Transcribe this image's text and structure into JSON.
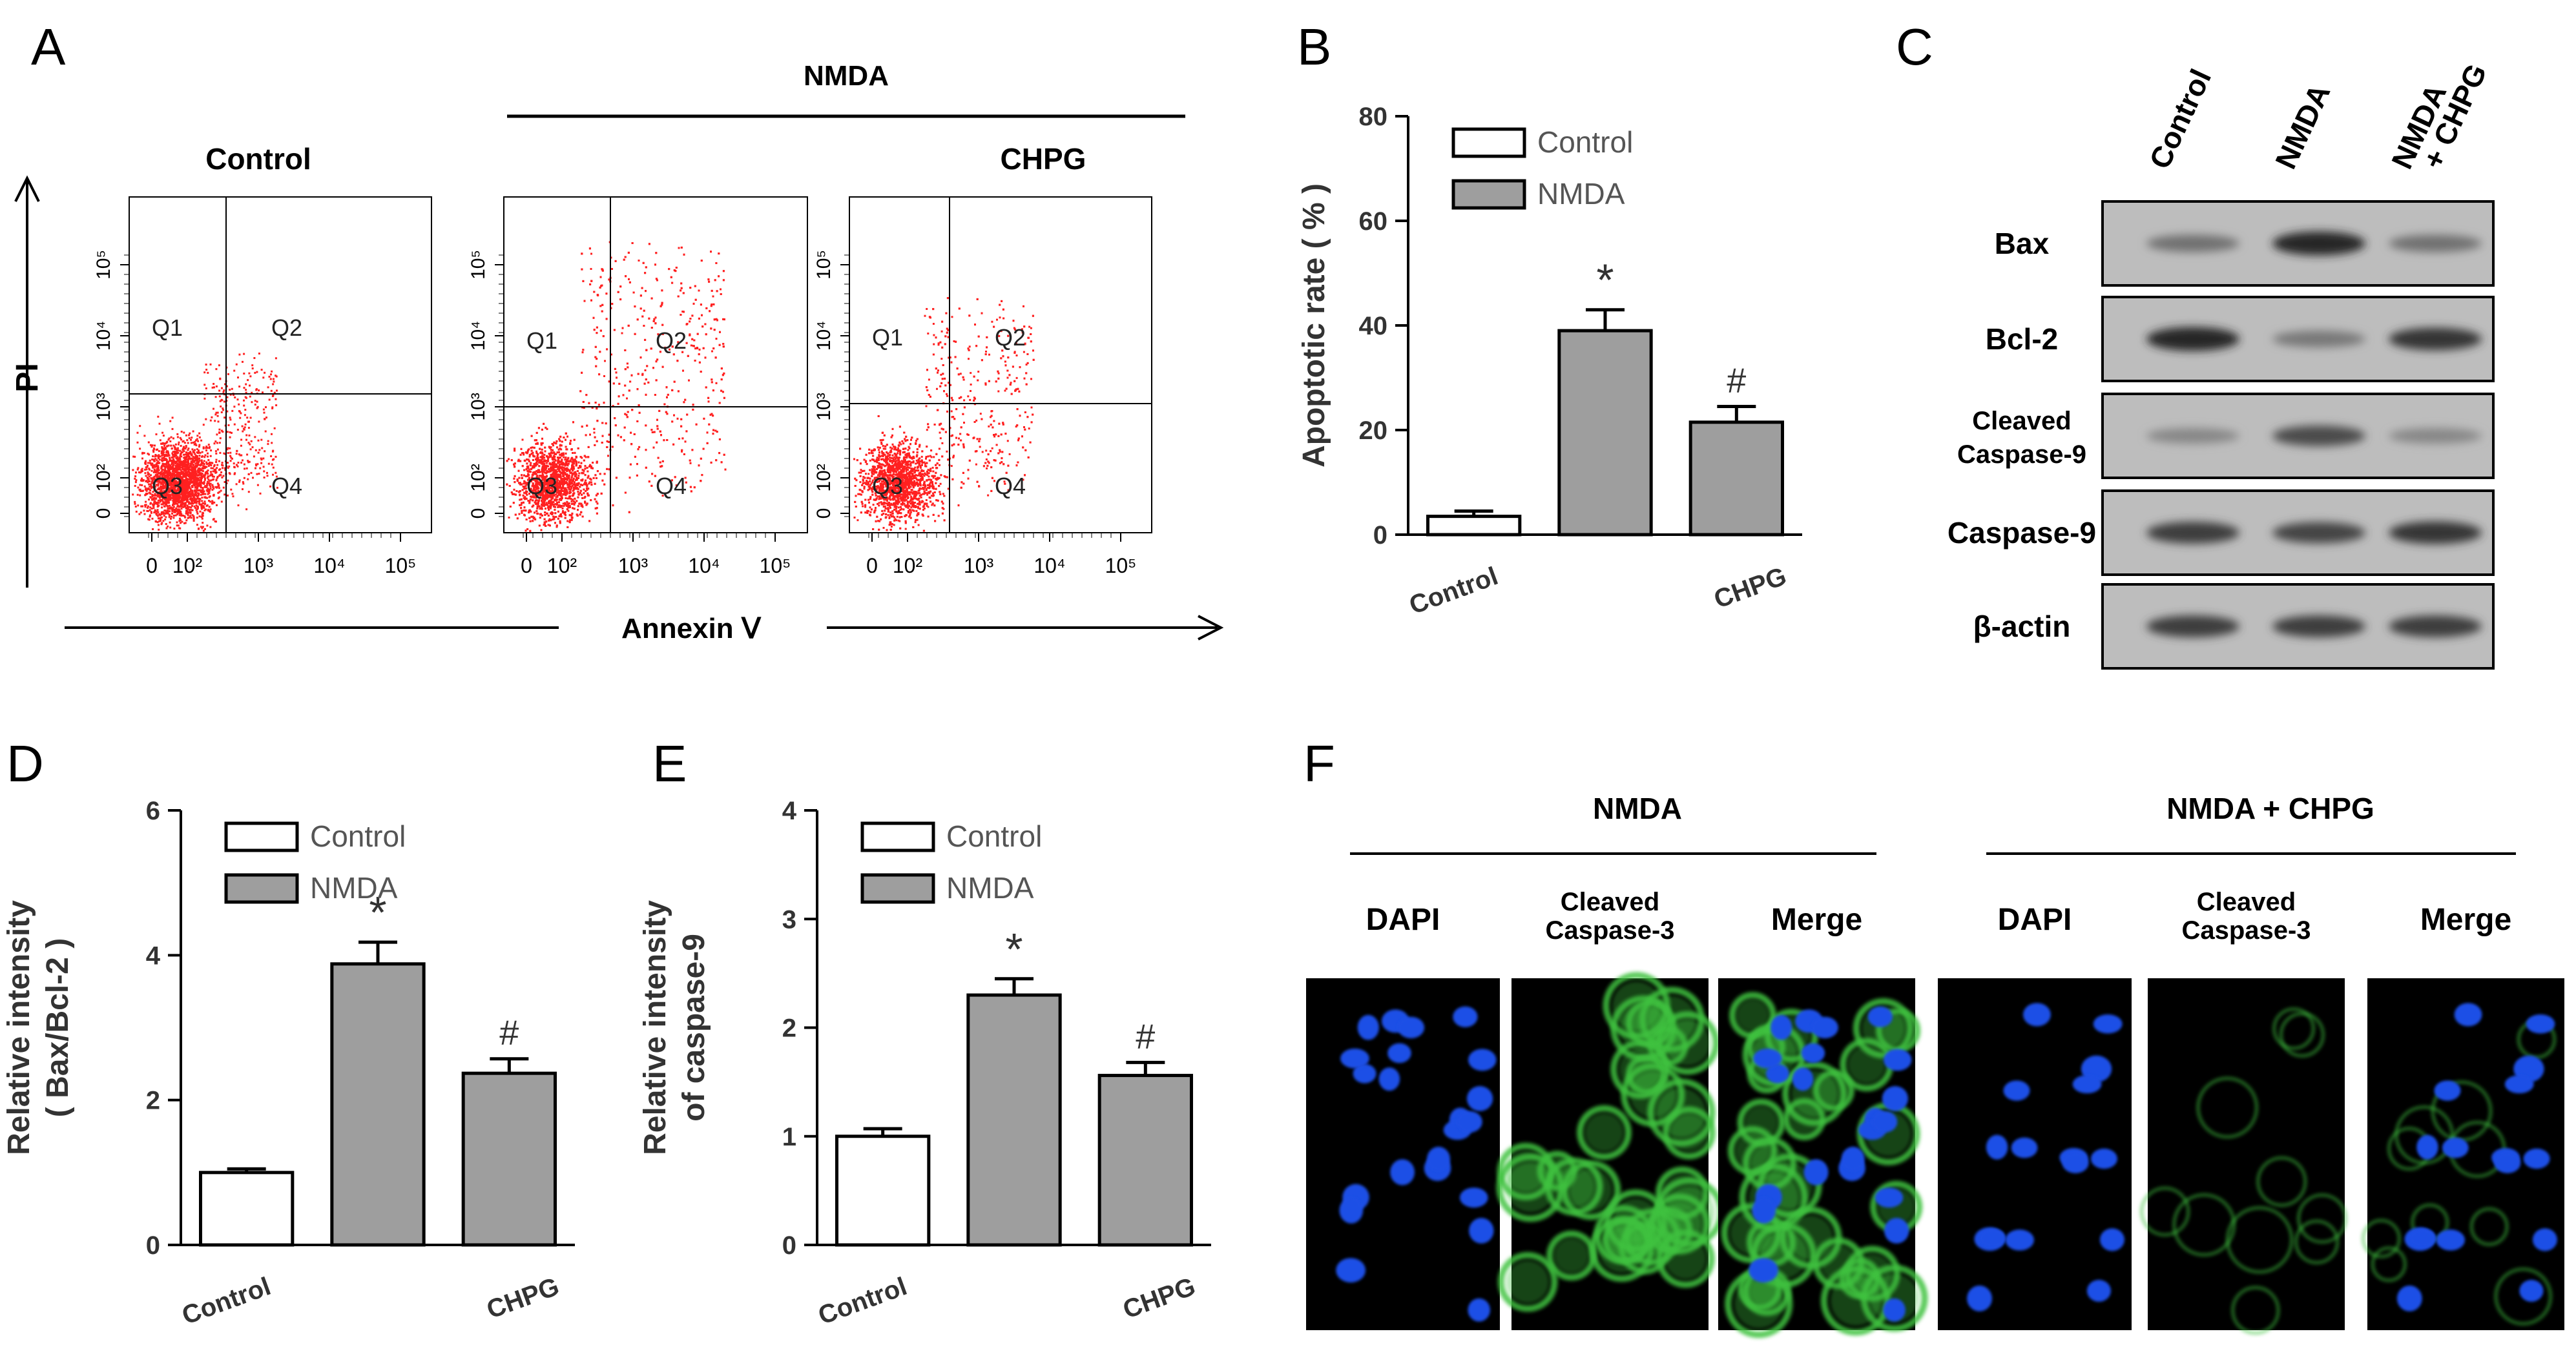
{
  "panels": {
    "A": {
      "letter": "A",
      "group_label": "NMDA",
      "y_axis_label": "PI",
      "x_axis_label": "Annexin Ⅴ",
      "plot_titles": [
        "Control",
        "",
        "CHPG"
      ],
      "quadrants": [
        "Q1",
        "Q2",
        "Q3",
        "Q4"
      ],
      "tick_labels": [
        "0",
        "10²",
        "10³",
        "10⁴",
        "10⁵"
      ]
    },
    "B": {
      "letter": "B"
    },
    "C": {
      "letter": "C",
      "lanes": [
        "Control",
        "NMDA",
        "NMDA + CHPG"
      ],
      "rows": [
        "Bax",
        "Bcl-2",
        "Cleaved Caspase-9",
        "Caspase-9",
        "β-actin"
      ],
      "row_label_lines": [
        [
          "Bax"
        ],
        [
          "Bcl-2"
        ],
        [
          "Cleaved",
          "Caspase-9"
        ],
        [
          "Caspase-9"
        ],
        [
          "β-actin"
        ]
      ],
      "lane_label_lines": [
        [
          "Control"
        ],
        [
          "NMDA"
        ],
        [
          "NMDA",
          "+ CHPG"
        ]
      ],
      "band_intensity": [
        [
          0.45,
          0.95,
          0.45
        ],
        [
          0.95,
          0.4,
          0.85
        ],
        [
          0.3,
          0.7,
          0.3
        ],
        [
          0.8,
          0.75,
          0.85
        ],
        [
          0.8,
          0.8,
          0.8
        ]
      ]
    },
    "D": {
      "letter": "D"
    },
    "E": {
      "letter": "E"
    },
    "F": {
      "letter": "F",
      "groups": [
        {
          "label": "NMDA",
          "columns": [
            "DAPI",
            "Cleaved Caspase-3",
            "Merge"
          ]
        },
        {
          "label": "NMDA + CHPG",
          "columns": [
            "DAPI",
            "Cleaved Caspase-3",
            "Merge"
          ]
        }
      ],
      "column_label_lines": [
        [
          "DAPI"
        ],
        [
          "Cleaved",
          "Caspase-3"
        ],
        [
          "Merge"
        ]
      ]
    }
  },
  "colors": {
    "bar_control": "#ffffff",
    "bar_nmda": "#9e9e9e",
    "scatter": "#ff2020",
    "dapi": "#1e4fe6",
    "caspase": "#3fc23f"
  },
  "chart_data": [
    {
      "panel": "B",
      "type": "bar",
      "categories": [
        "Control",
        "",
        "CHPG"
      ],
      "values": [
        3.5,
        39,
        21.5
      ],
      "errors": [
        1,
        4,
        3
      ],
      "fill": [
        "control",
        "nmda",
        "nmda"
      ],
      "markers": [
        "",
        "*",
        "#"
      ],
      "ylabel": "Apoptotic rate ( % )",
      "ylim": [
        0,
        80
      ],
      "yticks": [
        0,
        20,
        40,
        60,
        80
      ],
      "legend": [
        "Control",
        "NMDA"
      ],
      "legend_position": "top-left"
    },
    {
      "panel": "D",
      "type": "bar",
      "categories": [
        "Control",
        "",
        "CHPG"
      ],
      "values": [
        1.0,
        3.88,
        2.37
      ],
      "errors": [
        0.05,
        0.3,
        0.2
      ],
      "fill": [
        "control",
        "nmda",
        "nmda"
      ],
      "markers": [
        "",
        "*",
        "#"
      ],
      "ylabel": [
        "Relative intensity",
        "( Bax/Bcl-2 )"
      ],
      "ylim": [
        0,
        6
      ],
      "yticks": [
        0,
        2,
        4,
        6
      ],
      "legend": [
        "Control",
        "NMDA"
      ],
      "legend_position": "top-left"
    },
    {
      "panel": "E",
      "type": "bar",
      "categories": [
        "Control",
        "",
        "CHPG"
      ],
      "values": [
        1.0,
        2.3,
        1.56
      ],
      "errors": [
        0.07,
        0.15,
        0.12
      ],
      "fill": [
        "control",
        "nmda",
        "nmda"
      ],
      "markers": [
        "",
        "*",
        "#"
      ],
      "ylabel": [
        "Relative intensity",
        "of caspase-9"
      ],
      "ylim": [
        0,
        4
      ],
      "yticks": [
        0,
        1,
        2,
        3,
        4
      ],
      "legend": [
        "Control",
        "NMDA"
      ],
      "legend_position": "top-left"
    }
  ]
}
